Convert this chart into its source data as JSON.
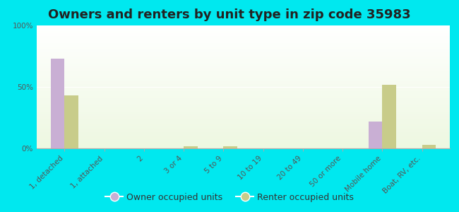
{
  "title": "Owners and renters by unit type in zip code 35983",
  "categories": [
    "1, detached",
    "1, attached",
    "2",
    "3 or 4",
    "5 to 9",
    "10 to 19",
    "20 to 49",
    "50 or more",
    "Mobile home",
    "Boat, RV, etc."
  ],
  "owner_values": [
    73,
    0,
    0,
    0,
    0,
    0,
    0,
    0,
    22,
    0
  ],
  "renter_values": [
    43,
    0,
    0,
    2,
    2,
    0,
    0,
    0,
    52,
    3
  ],
  "owner_color": "#c9afd4",
  "renter_color": "#c8cc8a",
  "background_color": "#00e8ef",
  "ylabel_ticks": [
    "0%",
    "50%",
    "100%"
  ],
  "ytick_values": [
    0,
    50,
    100
  ],
  "ylim": [
    0,
    100
  ],
  "legend_owner": "Owner occupied units",
  "legend_renter": "Renter occupied units",
  "title_fontsize": 13,
  "tick_fontsize": 7.5,
  "bar_width": 0.35
}
